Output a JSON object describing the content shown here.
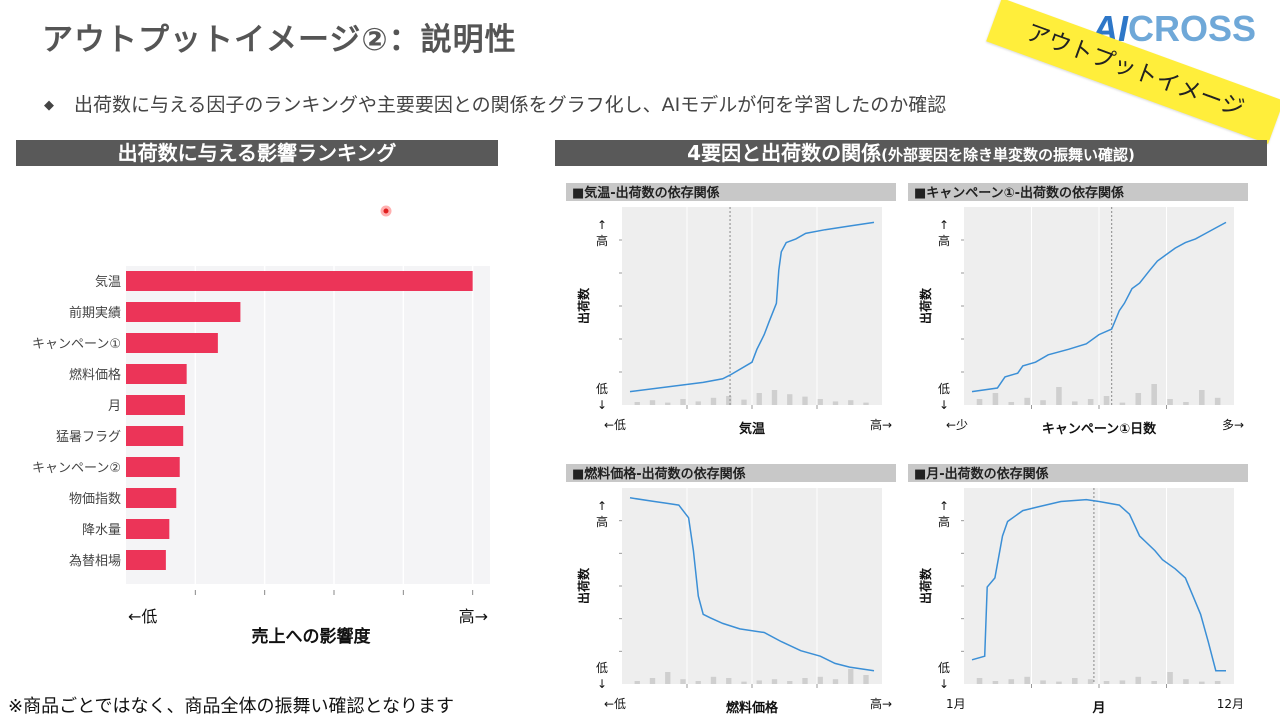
{
  "page": {
    "title": "アウトプットイメージ②：説明性",
    "bullet": "出荷数に与える因子のランキングや主要要因との関係をグラフ化し、AIモデルが何を学習したのか確認",
    "left_header": "出荷数に与える影響ランキング",
    "right_header_main": "4要因と出荷数の関係",
    "right_header_sub": "(外部要因を除き単変数の振舞い確認)",
    "footnote": "※商品ごとではなく、商品全体の振舞い確認となります",
    "banner": "アウトプットイメージ",
    "logo_ai": "AI",
    "logo_rest": "CROSS"
  },
  "colors": {
    "bar": "#ec3458",
    "line": "#3b8fd6",
    "header_bg": "#595959",
    "banner": "#ffee3b"
  },
  "chart_data": [
    {
      "type": "bar",
      "orientation": "horizontal",
      "categories": [
        "気温",
        "前期実績",
        "キャンペーン①",
        "燃料価格",
        "月",
        "猛暑フラグ",
        "キャンペーン②",
        "物価指数",
        "降水量",
        "為替相場"
      ],
      "values": [
        1.0,
        0.33,
        0.265,
        0.175,
        0.17,
        0.165,
        0.155,
        0.145,
        0.125,
        0.115
      ],
      "xlabel": "売上への影響度",
      "x_low": "←低",
      "x_high": "高→",
      "xlim": [
        0,
        1.05
      ],
      "grid": true
    },
    {
      "type": "line",
      "title": "■気温-出荷数の依存関係",
      "xlabel": "気温",
      "ylabel": "出荷数",
      "x_low": "←低",
      "x_high": "高→",
      "y_high": "高",
      "y_low": "低",
      "x": [
        0,
        0.3,
        0.38,
        0.41,
        0.5,
        0.52,
        0.55,
        0.57,
        0.6,
        0.61,
        0.62,
        0.64,
        0.68,
        0.72,
        0.8,
        0.9,
        1.0
      ],
      "y": [
        0.04,
        0.09,
        0.11,
        0.13,
        0.2,
        0.27,
        0.35,
        0.42,
        0.52,
        0.7,
        0.8,
        0.85,
        0.87,
        0.9,
        0.92,
        0.94,
        0.96
      ],
      "hist": [
        0.05,
        0.08,
        0.04,
        0.1,
        0.06,
        0.12,
        0.15,
        0.09,
        0.2,
        0.25,
        0.18,
        0.14,
        0.1,
        0.06,
        0.08,
        0.04
      ],
      "vline": 0.41
    },
    {
      "type": "line",
      "title": "■キャンペーン①-出荷数の依存関係",
      "xlabel": "キャンペーン①日数",
      "ylabel": "出荷数",
      "x_low": "←少",
      "x_high": "多→",
      "y_high": "高",
      "y_low": "低",
      "x": [
        0,
        0.1,
        0.13,
        0.18,
        0.2,
        0.25,
        0.3,
        0.38,
        0.45,
        0.5,
        0.55,
        0.58,
        0.6,
        0.63,
        0.66,
        0.7,
        0.73,
        0.76,
        0.8,
        0.84,
        0.88,
        0.92,
        0.96,
        1.0
      ],
      "y": [
        0.04,
        0.06,
        0.12,
        0.14,
        0.18,
        0.2,
        0.24,
        0.27,
        0.3,
        0.35,
        0.38,
        0.48,
        0.52,
        0.6,
        0.63,
        0.7,
        0.75,
        0.78,
        0.82,
        0.85,
        0.87,
        0.9,
        0.93,
        0.96
      ],
      "hist": [
        0.1,
        0.2,
        0.05,
        0.12,
        0.08,
        0.3,
        0.06,
        0.1,
        0.15,
        0.04,
        0.2,
        0.35,
        0.1,
        0.05,
        0.25,
        0.12
      ],
      "vline": 0.55
    },
    {
      "type": "line",
      "title": "■燃料価格-出荷数の依存関係",
      "xlabel": "燃料価格",
      "ylabel": "出荷数",
      "x_low": "←低",
      "x_high": "高→",
      "y_high": "高",
      "y_low": "低",
      "x": [
        0,
        0.1,
        0.15,
        0.2,
        0.24,
        0.26,
        0.28,
        0.3,
        0.33,
        0.38,
        0.45,
        0.55,
        0.62,
        0.7,
        0.78,
        0.84,
        0.9,
        1.0
      ],
      "y": [
        0.99,
        0.97,
        0.96,
        0.95,
        0.88,
        0.7,
        0.45,
        0.35,
        0.33,
        0.3,
        0.27,
        0.25,
        0.2,
        0.15,
        0.12,
        0.08,
        0.06,
        0.04
      ],
      "hist": [
        0.05,
        0.1,
        0.2,
        0.08,
        0.05,
        0.12,
        0.1,
        0.04,
        0.06,
        0.08,
        0.05,
        0.1,
        0.12,
        0.08,
        0.25,
        0.15
      ],
      "vline": null
    },
    {
      "type": "line",
      "title": "■月-出荷数の依存関係",
      "xlabel": "月",
      "ylabel": "出荷数",
      "x_low": "1月",
      "x_high": "12月",
      "y_high": "高",
      "y_low": "低",
      "x": [
        0,
        0.05,
        0.06,
        0.09,
        0.12,
        0.14,
        0.2,
        0.26,
        0.35,
        0.45,
        0.5,
        0.58,
        0.62,
        0.66,
        0.72,
        0.75,
        0.8,
        0.84,
        0.87,
        0.9,
        0.93,
        0.96,
        1.0
      ],
      "y": [
        0.1,
        0.12,
        0.5,
        0.55,
        0.78,
        0.86,
        0.92,
        0.94,
        0.97,
        0.98,
        0.97,
        0.95,
        0.9,
        0.78,
        0.7,
        0.65,
        0.6,
        0.55,
        0.45,
        0.35,
        0.2,
        0.04,
        0.04
      ],
      "hist": [
        0.1,
        0.05,
        0.08,
        0.12,
        0.06,
        0.04,
        0.1,
        0.08,
        0.05,
        0.06,
        0.12,
        0.05,
        0.2,
        0.08,
        0.04,
        0.05
      ],
      "vline": 0.48
    }
  ]
}
